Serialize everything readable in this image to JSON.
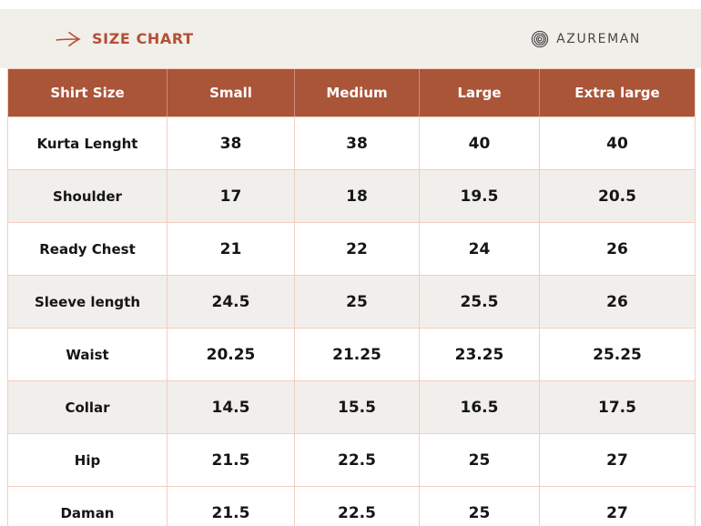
{
  "header": {
    "title": "SIZE CHART",
    "brand": "AZUREMAN"
  },
  "colors": {
    "accent": "#b44f35",
    "table_header_bg": "#aa5438",
    "table_border": "#f3cebd",
    "band_bg": "#f1efe9",
    "shaded_row_bg": "#f1efeb",
    "brand_text": "#474747"
  },
  "chart_data": {
    "type": "table",
    "title": "SIZE CHART",
    "columns": [
      "Shirt Size",
      "Small",
      "Medium",
      "Large",
      "Extra large"
    ],
    "rows": [
      {
        "label": "Kurta Lenght",
        "values": [
          "38",
          "38",
          "40",
          "40"
        ],
        "shaded": false
      },
      {
        "label": "Shoulder",
        "values": [
          "17",
          "18",
          "19.5",
          "20.5"
        ],
        "shaded": true
      },
      {
        "label": "Ready Chest",
        "values": [
          "21",
          "22",
          "24",
          "26"
        ],
        "shaded": false
      },
      {
        "label": "Sleeve length",
        "values": [
          "24.5",
          "25",
          "25.5",
          "26"
        ],
        "shaded": true
      },
      {
        "label": "Waist",
        "values": [
          "20.25",
          "21.25",
          "23.25",
          "25.25"
        ],
        "shaded": false
      },
      {
        "label": "Collar",
        "values": [
          "14.5",
          "15.5",
          "16.5",
          "17.5"
        ],
        "shaded": true
      },
      {
        "label": "Hip",
        "values": [
          "21.5",
          "22.5",
          "25",
          "27"
        ],
        "shaded": false
      },
      {
        "label": "Daman",
        "values": [
          "21.5",
          "22.5",
          "25",
          "27"
        ],
        "shaded": false
      }
    ]
  }
}
